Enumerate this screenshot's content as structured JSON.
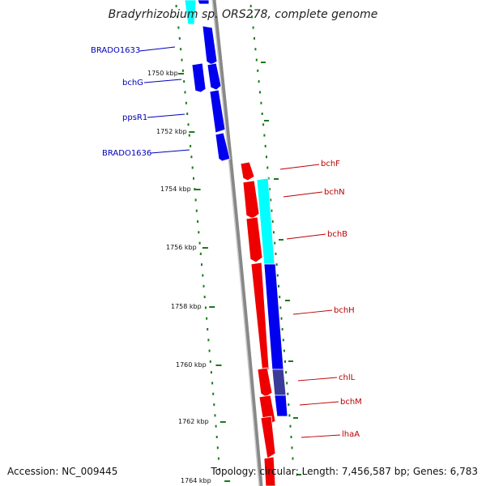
{
  "title": "Bradyrhizobium sp. ORS278, complete genome",
  "accession_text": "Accession: NC_009445",
  "topology_text": "Topology: circular; Length: 7,456,587 bp; Genes: 6,783",
  "colors": {
    "backbone": "#888888",
    "tick": "#1a7a1a",
    "blue_gene": "#0000ee",
    "red_gene": "#ee0000",
    "cyan_gene": "#00ffff",
    "blue_label": "#0000bb",
    "red_label": "#bb0000"
  },
  "ticks": [
    {
      "label": "1750 kbp"
    },
    {
      "label": "1752 kbp"
    },
    {
      "label": "1754 kbp"
    },
    {
      "label": "1756 kbp"
    },
    {
      "label": "1758 kbp"
    },
    {
      "label": "1760 kbp"
    },
    {
      "label": "1762 kbp"
    },
    {
      "label": "1764 kbp"
    }
  ],
  "genes_left": [
    {
      "name": "BRADO1633"
    },
    {
      "name": "bchG"
    },
    {
      "name": "ppsR1"
    },
    {
      "name": "BRADO1636"
    }
  ],
  "genes_right": [
    {
      "name": "bchF"
    },
    {
      "name": "bchN"
    },
    {
      "name": "bchB"
    },
    {
      "name": "bchH"
    },
    {
      "name": "chlL"
    },
    {
      "name": "bchM"
    },
    {
      "name": "lhaA"
    }
  ]
}
